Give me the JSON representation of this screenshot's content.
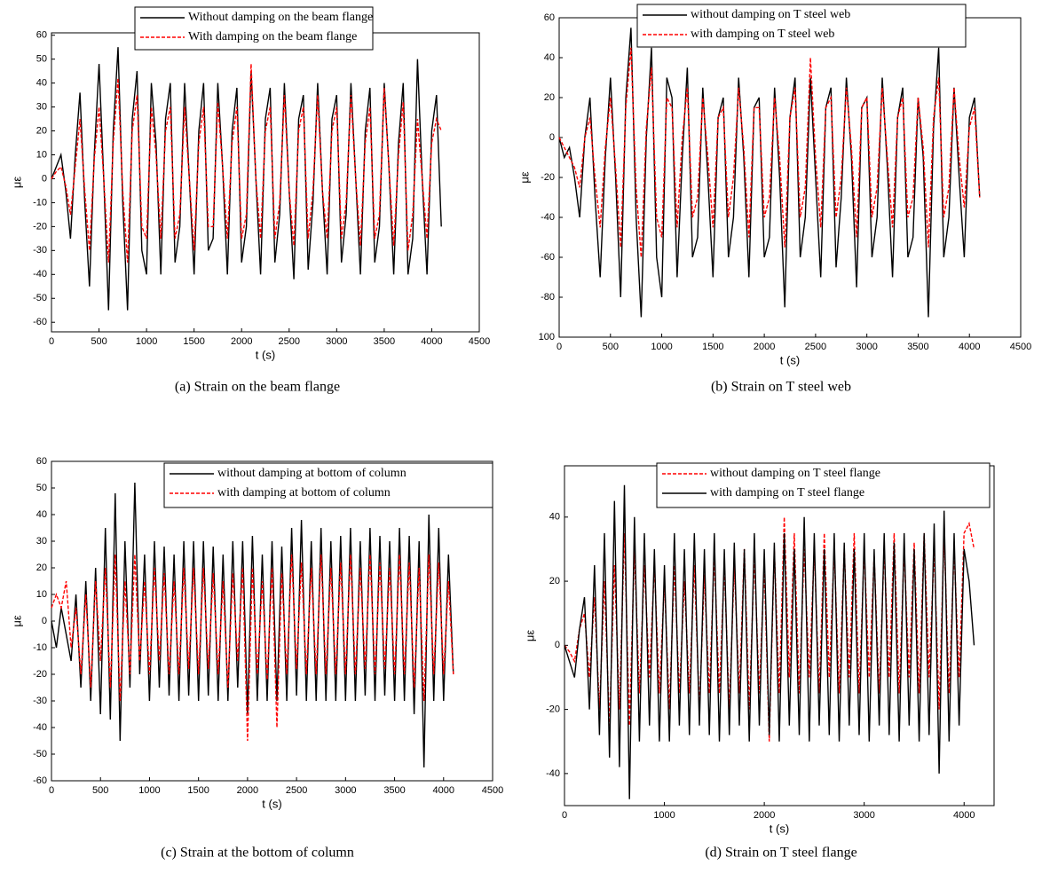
{
  "chart_data": [
    {
      "type": "line",
      "caption": "(a) Strain on the beam flange",
      "xlabel": "t (s)",
      "ylabel": "με",
      "xlim": [
        0,
        4500
      ],
      "ylim": [
        -64,
        61
      ],
      "xticks": [
        0,
        500,
        1000,
        1500,
        2000,
        2500,
        3000,
        3500,
        4000,
        4500
      ],
      "yticks": [
        -60,
        -50,
        -40,
        -30,
        -20,
        -10,
        0,
        10,
        20,
        30,
        40,
        50,
        60
      ],
      "x": [
        0,
        50,
        100,
        150,
        200,
        250,
        300,
        350,
        400,
        450,
        500,
        550,
        600,
        650,
        700,
        750,
        800,
        850,
        900,
        950,
        1000,
        1050,
        1100,
        1150,
        1200,
        1250,
        1300,
        1350,
        1400,
        1450,
        1500,
        1550,
        1600,
        1650,
        1700,
        1750,
        1800,
        1850,
        1900,
        1950,
        2000,
        2050,
        2100,
        2150,
        2200,
        2250,
        2300,
        2350,
        2400,
        2450,
        2500,
        2550,
        2600,
        2650,
        2700,
        2750,
        2800,
        2850,
        2900,
        2950,
        3000,
        3050,
        3100,
        3150,
        3200,
        3250,
        3300,
        3350,
        3400,
        3450,
        3500,
        3550,
        3600,
        3650,
        3700,
        3750,
        3800,
        3850,
        3900,
        3950,
        4000,
        4050,
        4100
      ],
      "series": [
        {
          "name": "Without damping on the beam flange",
          "color": "#000000",
          "style": "solid",
          "values": [
            0,
            5,
            10,
            -5,
            -25,
            10,
            36,
            -10,
            -45,
            10,
            48,
            0,
            -55,
            20,
            55,
            -10,
            -55,
            25,
            45,
            -30,
            -40,
            40,
            15,
            -40,
            25,
            40,
            -35,
            -20,
            40,
            0,
            -40,
            20,
            40,
            -30,
            -25,
            40,
            5,
            -40,
            20,
            38,
            -35,
            -20,
            45,
            0,
            -40,
            25,
            38,
            -35,
            -15,
            40,
            -5,
            -42,
            25,
            35,
            -38,
            -10,
            40,
            -5,
            -40,
            25,
            35,
            -35,
            -15,
            40,
            0,
            -40,
            20,
            38,
            -35,
            -20,
            40,
            5,
            -40,
            15,
            40,
            -40,
            -25,
            50,
            0,
            -40,
            20,
            35,
            -20
          ]
        },
        {
          "name": "With damping on the beam flange",
          "color": "#ff0000",
          "style": "dashed",
          "values": [
            0,
            3,
            5,
            -3,
            -15,
            5,
            25,
            -5,
            -30,
            8,
            30,
            0,
            -35,
            15,
            42,
            -5,
            -35,
            20,
            35,
            -20,
            -25,
            30,
            10,
            -25,
            20,
            30,
            -25,
            -15,
            30,
            0,
            -30,
            15,
            30,
            -20,
            -20,
            32,
            5,
            -25,
            15,
            30,
            -25,
            -15,
            48,
            0,
            -25,
            20,
            30,
            -25,
            -10,
            35,
            -5,
            -28,
            20,
            30,
            -25,
            -5,
            35,
            -5,
            -25,
            20,
            30,
            -25,
            -10,
            35,
            0,
            -28,
            15,
            30,
            -25,
            -15,
            38,
            5,
            -28,
            10,
            32,
            -30,
            -15,
            25,
            0,
            -25,
            15,
            25,
            20
          ]
        }
      ]
    },
    {
      "type": "line",
      "caption": "(b) Strain on T steel web",
      "xlabel": "t (s)",
      "ylabel": "με",
      "xlim": [
        0,
        4500
      ],
      "ylim": [
        -100,
        60
      ],
      "xticks": [
        0,
        500,
        1000,
        1500,
        2000,
        2500,
        3000,
        3500,
        4000,
        4500
      ],
      "yticks": [
        {
          "value": -100,
          "label": "100"
        },
        -80,
        -60,
        -40,
        -20,
        0,
        20,
        40,
        60
      ],
      "x": [
        0,
        50,
        100,
        150,
        200,
        250,
        300,
        350,
        400,
        450,
        500,
        550,
        600,
        650,
        700,
        750,
        800,
        850,
        900,
        950,
        1000,
        1050,
        1100,
        1150,
        1200,
        1250,
        1300,
        1350,
        1400,
        1450,
        1500,
        1550,
        1600,
        1650,
        1700,
        1750,
        1800,
        1850,
        1900,
        1950,
        2000,
        2050,
        2100,
        2150,
        2200,
        2250,
        2300,
        2350,
        2400,
        2450,
        2500,
        2550,
        2600,
        2650,
        2700,
        2750,
        2800,
        2850,
        2900,
        2950,
        3000,
        3050,
        3100,
        3150,
        3200,
        3250,
        3300,
        3350,
        3400,
        3450,
        3500,
        3550,
        3600,
        3650,
        3700,
        3750,
        3800,
        3850,
        3900,
        3950,
        4000,
        4050,
        4100
      ],
      "series": [
        {
          "name": "without damping on T steel web",
          "color": "#000000",
          "style": "solid",
          "values": [
            0,
            -10,
            -5,
            -20,
            -40,
            0,
            20,
            -30,
            -70,
            -10,
            30,
            -20,
            -80,
            20,
            55,
            -40,
            -90,
            0,
            45,
            -60,
            -80,
            30,
            20,
            -70,
            -10,
            35,
            -60,
            -50,
            25,
            -20,
            -70,
            10,
            20,
            -60,
            -40,
            30,
            -10,
            -70,
            15,
            20,
            -60,
            -50,
            25,
            -20,
            -85,
            10,
            30,
            -60,
            -40,
            30,
            -20,
            -70,
            15,
            25,
            -65,
            -30,
            30,
            -10,
            -75,
            15,
            20,
            -60,
            -40,
            30,
            -15,
            -70,
            10,
            25,
            -60,
            -50,
            20,
            -10,
            -90,
            5,
            45,
            -60,
            -40,
            25,
            -20,
            -60,
            10,
            20,
            -30
          ]
        },
        {
          "name": "with damping on T steel web",
          "color": "#ff0000",
          "style": "dashed",
          "values": [
            0,
            -5,
            -10,
            -15,
            -25,
            0,
            10,
            -20,
            -45,
            -5,
            20,
            -15,
            -55,
            15,
            45,
            -25,
            -60,
            5,
            35,
            -40,
            -50,
            20,
            15,
            -45,
            0,
            25,
            -40,
            -30,
            20,
            -10,
            -45,
            10,
            15,
            -40,
            -20,
            25,
            -5,
            -50,
            15,
            15,
            -40,
            -30,
            20,
            -10,
            -55,
            10,
            25,
            -40,
            -25,
            40,
            -10,
            -45,
            15,
            20,
            -40,
            -20,
            25,
            -5,
            -50,
            15,
            20,
            -40,
            -25,
            25,
            -10,
            -45,
            10,
            20,
            -40,
            -30,
            20,
            -5,
            -55,
            10,
            30,
            -40,
            -25,
            25,
            -10,
            -35,
            5,
            15,
            -30
          ]
        }
      ]
    },
    {
      "type": "line",
      "caption": "(c) Strain at the bottom of column",
      "xlabel": "t (s)",
      "ylabel": "με",
      "xlim": [
        0,
        4500
      ],
      "ylim": [
        -60,
        60
      ],
      "xticks": [
        0,
        500,
        1000,
        1500,
        2000,
        2500,
        3000,
        3500,
        4000,
        4500
      ],
      "yticks": [
        -60,
        -50,
        -40,
        -30,
        -20,
        -10,
        0,
        10,
        20,
        30,
        40,
        50,
        60
      ],
      "x": [
        0,
        50,
        100,
        150,
        200,
        250,
        300,
        350,
        400,
        450,
        500,
        550,
        600,
        650,
        700,
        750,
        800,
        850,
        900,
        950,
        1000,
        1050,
        1100,
        1150,
        1200,
        1250,
        1300,
        1350,
        1400,
        1450,
        1500,
        1550,
        1600,
        1650,
        1700,
        1750,
        1800,
        1850,
        1900,
        1950,
        2000,
        2050,
        2100,
        2150,
        2200,
        2250,
        2300,
        2350,
        2400,
        2450,
        2500,
        2550,
        2600,
        2650,
        2700,
        2750,
        2800,
        2850,
        2900,
        2950,
        3000,
        3050,
        3100,
        3150,
        3200,
        3250,
        3300,
        3350,
        3400,
        3450,
        3500,
        3550,
        3600,
        3650,
        3700,
        3750,
        3800,
        3850,
        3900,
        3950,
        4000,
        4050,
        4100
      ],
      "series": [
        {
          "name": "without damping at bottom of column",
          "color": "#000000",
          "style": "solid",
          "values": [
            0,
            -10,
            5,
            -5,
            -15,
            10,
            -25,
            15,
            -30,
            20,
            -35,
            35,
            -37,
            48,
            -45,
            30,
            -25,
            52,
            -20,
            25,
            -30,
            30,
            -25,
            28,
            -28,
            25,
            -30,
            30,
            -28,
            30,
            -30,
            30,
            -28,
            28,
            -30,
            25,
            -30,
            30,
            -25,
            30,
            -35,
            32,
            -30,
            25,
            -30,
            30,
            -30,
            28,
            -30,
            35,
            -28,
            38,
            -30,
            30,
            -30,
            35,
            -30,
            30,
            -30,
            32,
            -30,
            35,
            -30,
            30,
            -28,
            35,
            -30,
            32,
            -28,
            30,
            -30,
            35,
            -30,
            32,
            -35,
            30,
            -55,
            40,
            -30,
            35,
            -30,
            25,
            -20
          ]
        },
        {
          "name": "with damping at bottom of column",
          "color": "#ff0000",
          "style": "dashed",
          "values": [
            5,
            10,
            5,
            15,
            -10,
            5,
            -20,
            10,
            -25,
            15,
            -15,
            20,
            -25,
            25,
            -30,
            15,
            -20,
            25,
            -15,
            15,
            -20,
            20,
            -15,
            18,
            -20,
            15,
            -20,
            20,
            -18,
            20,
            -20,
            20,
            -18,
            18,
            -20,
            15,
            -25,
            18,
            -15,
            20,
            -45,
            20,
            -20,
            15,
            -22,
            20,
            -40,
            18,
            -20,
            25,
            -18,
            22,
            -20,
            20,
            -20,
            25,
            -20,
            20,
            -20,
            22,
            -20,
            25,
            -20,
            20,
            -18,
            25,
            -20,
            22,
            -18,
            20,
            -20,
            25,
            -20,
            22,
            -25,
            20,
            -30,
            25,
            -20,
            22,
            -20,
            15,
            -20
          ]
        }
      ]
    },
    {
      "type": "line",
      "caption": "(d) Strain on T steel flange",
      "xlabel": "t (s)",
      "ylabel": "με",
      "xlim": [
        0,
        4300
      ],
      "ylim": [
        -50,
        56
      ],
      "xticks": [
        0,
        1000,
        2000,
        3000,
        4000
      ],
      "yticks": [
        -40,
        -20,
        0,
        20,
        40
      ],
      "x": [
        0,
        50,
        100,
        150,
        200,
        250,
        300,
        350,
        400,
        450,
        500,
        550,
        600,
        650,
        700,
        750,
        800,
        850,
        900,
        950,
        1000,
        1050,
        1100,
        1150,
        1200,
        1250,
        1300,
        1350,
        1400,
        1450,
        1500,
        1550,
        1600,
        1650,
        1700,
        1750,
        1800,
        1850,
        1900,
        1950,
        2000,
        2050,
        2100,
        2150,
        2200,
        2250,
        2300,
        2350,
        2400,
        2450,
        2500,
        2550,
        2600,
        2650,
        2700,
        2750,
        2800,
        2850,
        2900,
        2950,
        3000,
        3050,
        3100,
        3150,
        3200,
        3250,
        3300,
        3350,
        3400,
        3450,
        3500,
        3550,
        3600,
        3650,
        3700,
        3750,
        3800,
        3850,
        3900,
        3950,
        4000,
        4050,
        4100
      ],
      "series": [
        {
          "name": "without damping on T steel flange",
          "color": "#ff0000",
          "style": "dashed",
          "values": [
            0,
            -2,
            -5,
            5,
            10,
            -10,
            15,
            -20,
            20,
            -25,
            25,
            -20,
            35,
            -25,
            30,
            -15,
            25,
            -10,
            25,
            -15,
            20,
            -20,
            25,
            -15,
            20,
            -15,
            25,
            -20,
            22,
            -15,
            28,
            -15,
            25,
            -20,
            25,
            -15,
            30,
            -20,
            28,
            -15,
            25,
            -30,
            30,
            -15,
            40,
            -10,
            35,
            -15,
            30,
            -10,
            30,
            -15,
            35,
            -10,
            30,
            -15,
            30,
            -10,
            35,
            -15,
            30,
            -10,
            28,
            -15,
            30,
            -10,
            35,
            -15,
            30,
            -10,
            32,
            -15,
            35,
            -10,
            30,
            -20,
            35,
            -15,
            30,
            -10,
            35,
            38,
            30
          ]
        },
        {
          "name": "with damping on T steel flange",
          "color": "#000000",
          "style": "solid",
          "values": [
            0,
            -5,
            -10,
            5,
            15,
            -20,
            25,
            -28,
            35,
            -35,
            45,
            -38,
            50,
            -48,
            40,
            -30,
            35,
            -25,
            30,
            -30,
            25,
            -30,
            35,
            -25,
            30,
            -28,
            35,
            -25,
            30,
            -28,
            35,
            -30,
            30,
            -28,
            32,
            -25,
            30,
            -30,
            35,
            -25,
            30,
            -28,
            32,
            -30,
            35,
            -25,
            30,
            -28,
            40,
            -30,
            35,
            -25,
            30,
            -28,
            35,
            -30,
            32,
            -25,
            30,
            -28,
            35,
            -30,
            30,
            -25,
            35,
            -28,
            32,
            -30,
            35,
            -25,
            30,
            -30,
            35,
            -28,
            38,
            -40,
            42,
            -30,
            35,
            -25,
            30,
            20,
            0
          ]
        }
      ]
    }
  ]
}
